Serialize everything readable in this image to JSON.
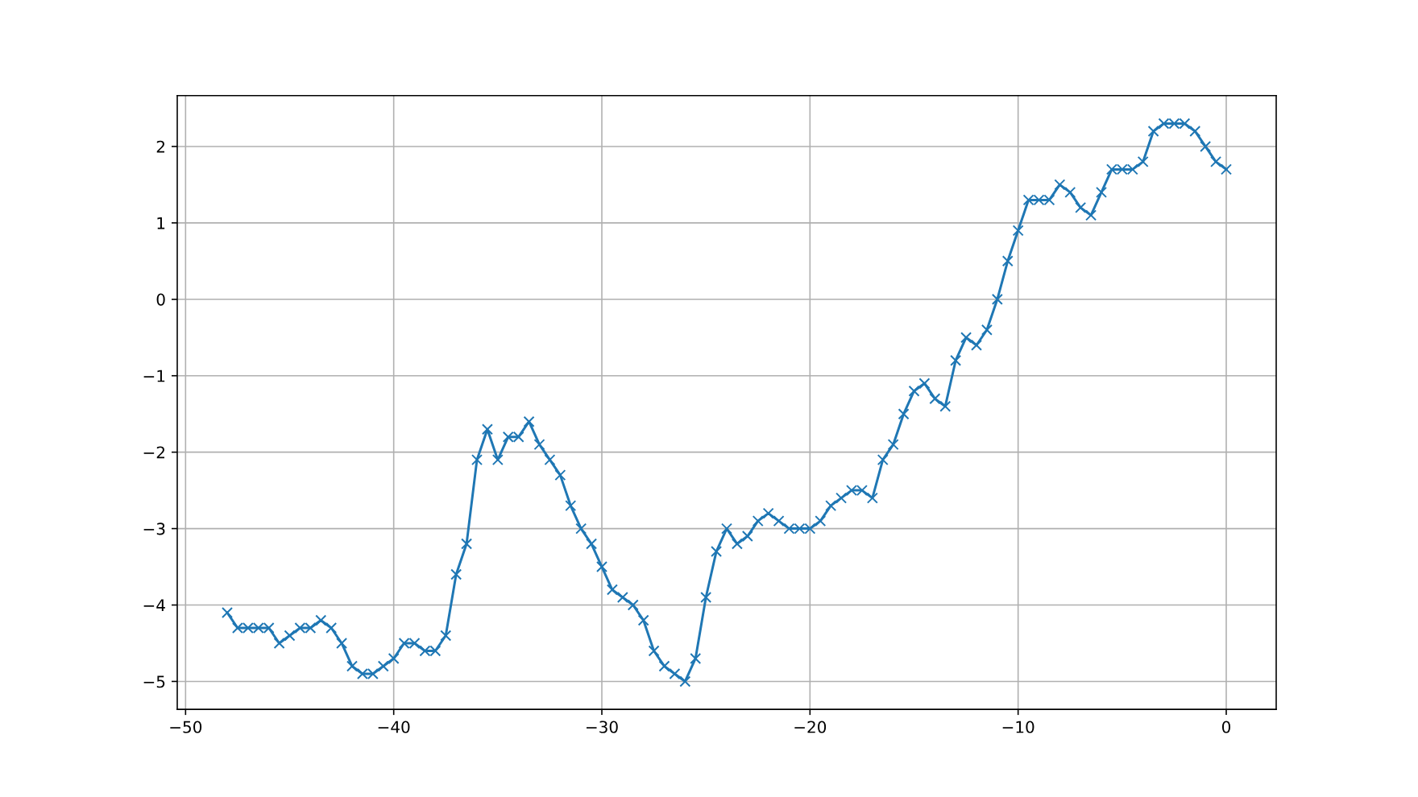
{
  "chart_data": {
    "type": "line",
    "x": [
      -48,
      -47.5,
      -47,
      -46.5,
      -46,
      -45.5,
      -45,
      -44.5,
      -44,
      -43.5,
      -43,
      -42.5,
      -42,
      -41.5,
      -41,
      -40.5,
      -40,
      -39.5,
      -39,
      -38.5,
      -38,
      -37.5,
      -37,
      -36.5,
      -36,
      -35.5,
      -35,
      -34.5,
      -34,
      -33.5,
      -33,
      -32.5,
      -32,
      -31.5,
      -31,
      -30.5,
      -30,
      -29.5,
      -29,
      -28.5,
      -28,
      -27.5,
      -27,
      -26.5,
      -26,
      -25.5,
      -25,
      -24.5,
      -24,
      -23.5,
      -23,
      -22.5,
      -22,
      -21.5,
      -21,
      -20.5,
      -20,
      -19.5,
      -19,
      -18.5,
      -18,
      -17.5,
      -17,
      -16.5,
      -16,
      -15.5,
      -15,
      -14.5,
      -14,
      -13.5,
      -13,
      -12.5,
      -12,
      -11.5,
      -11,
      -10.5,
      -10,
      -9.5,
      -9,
      -8.5,
      -8,
      -7.5,
      -7,
      -6.5,
      -6,
      -5.5,
      -5,
      -4.5,
      -4,
      -3.5,
      -3,
      -2.5,
      -2,
      -1.5,
      -1,
      -0.5,
      0
    ],
    "series": [
      {
        "color": "#1f77b4",
        "values": [
          -4.1,
          -4.3,
          -4.3,
          -4.3,
          -4.3,
          -4.5,
          -4.4,
          -4.3,
          -4.3,
          -4.2,
          -4.3,
          -4.5,
          -4.8,
          -4.9,
          -4.9,
          -4.8,
          -4.7,
          -4.5,
          -4.5,
          -4.6,
          -4.6,
          -4.4,
          -3.6,
          -3.2,
          -2.1,
          -1.7,
          -2.1,
          -1.8,
          -1.8,
          -1.6,
          -1.9,
          -2.1,
          -2.3,
          -2.7,
          -3.0,
          -3.2,
          -3.5,
          -3.8,
          -3.9,
          -4.0,
          -4.2,
          -4.6,
          -4.8,
          -4.9,
          -5.0,
          -4.7,
          -3.9,
          -3.3,
          -3.0,
          -3.2,
          -3.1,
          -2.9,
          -2.8,
          -2.9,
          -3.0,
          -3.0,
          -3.0,
          -2.9,
          -2.7,
          -2.6,
          -2.5,
          -2.5,
          -2.6,
          -2.1,
          -1.9,
          -1.5,
          -1.2,
          -1.1,
          -1.3,
          -1.4,
          -0.8,
          -0.5,
          -0.6,
          -0.4,
          0.0,
          0.5,
          0.9,
          1.3,
          1.3,
          1.3,
          1.5,
          1.4,
          1.2,
          1.1,
          1.4,
          1.7,
          1.7,
          1.7,
          1.8,
          2.2,
          2.3,
          2.3,
          2.3,
          2.2,
          2.0,
          1.8,
          1.7
        ]
      }
    ],
    "xlim": [
      -50.4,
      2.4
    ],
    "ylim": [
      -5.365,
      2.665
    ],
    "xticks": [
      -50,
      -40,
      -30,
      -20,
      -10,
      0
    ],
    "yticks": [
      -5,
      -4,
      -3,
      -2,
      -1,
      0,
      1,
      2
    ],
    "grid": true,
    "marker": "cross",
    "line_style": "solid"
  }
}
